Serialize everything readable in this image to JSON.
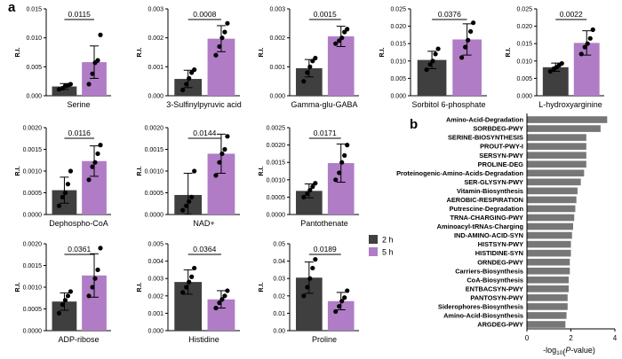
{
  "figure": {
    "panel_a": "a",
    "panel_b": "b",
    "legend": [
      {
        "label": "2 h",
        "color": "#3f3f3f"
      },
      {
        "label": "5 h",
        "color": "#b07cc6"
      }
    ]
  },
  "chart_data": [
    {
      "type": "bar",
      "title": "Serine",
      "ylabel": "R.I.",
      "ylim": [
        0,
        0.015
      ],
      "yticks": [
        "0.000",
        "0.005",
        "0.010",
        "0.015"
      ],
      "categories": [
        "2 h",
        "5 h"
      ],
      "values": [
        0.0016,
        0.0058
      ],
      "errors": [
        0.0005,
        0.0028
      ],
      "points": [
        [
          0.0011,
          0.0013,
          0.0017,
          0.0018,
          0.002
        ],
        [
          0.002,
          0.0038,
          0.0057,
          0.0061,
          0.0105
        ]
      ],
      "pvalue": "0.0115"
    },
    {
      "type": "bar",
      "title": "3-Sulfinylpyruvic acid",
      "ylabel": "R.I.",
      "ylim": [
        0,
        0.003
      ],
      "yticks": [
        "0.000",
        "0.001",
        "0.002",
        "0.003"
      ],
      "categories": [
        "2 h",
        "5 h"
      ],
      "values": [
        0.00058,
        0.00197
      ],
      "errors": [
        0.0003,
        0.00045
      ],
      "points": [
        [
          0.0002,
          0.0004,
          0.0006,
          0.0008,
          0.0009
        ],
        [
          0.0014,
          0.0017,
          0.002,
          0.0022,
          0.0025
        ]
      ],
      "pvalue": "0.0008"
    },
    {
      "type": "bar",
      "title": "Gamma-glu-GABA",
      "ylabel": "R.I.",
      "ylim": [
        0,
        0.003
      ],
      "yticks": [
        "0.000",
        "0.001",
        "0.002",
        "0.003"
      ],
      "categories": [
        "2 h",
        "5 h"
      ],
      "values": [
        0.00095,
        0.00205
      ],
      "errors": [
        0.0003,
        0.00035
      ],
      "points": [
        [
          0.0005,
          0.0008,
          0.001,
          0.0012,
          0.0013
        ],
        [
          0.0018,
          0.0019,
          0.002,
          0.0022,
          0.0023
        ]
      ],
      "pvalue": "0.0015"
    },
    {
      "type": "bar",
      "title": "Sorbitol 6-phosphate",
      "ylabel": "R.I.",
      "ylim": [
        0,
        0.025
      ],
      "yticks": [
        "0.000",
        "0.005",
        "0.010",
        "0.015",
        "0.020",
        "0.025"
      ],
      "categories": [
        "2 h",
        "5 h"
      ],
      "values": [
        0.0103,
        0.0162
      ],
      "errors": [
        0.0025,
        0.0045
      ],
      "points": [
        [
          0.0075,
          0.009,
          0.01,
          0.012,
          0.0135
        ],
        [
          0.011,
          0.014,
          0.016,
          0.0185,
          0.021
        ]
      ],
      "pvalue": "0.0376"
    },
    {
      "type": "bar",
      "title": "L-hydroxyarginine",
      "ylabel": "R.I.",
      "ylim": [
        0,
        0.025
      ],
      "yticks": [
        "0.000",
        "0.005",
        "0.010",
        "0.015",
        "0.020",
        "0.025"
      ],
      "categories": [
        "2 h",
        "5 h"
      ],
      "values": [
        0.0082,
        0.0152
      ],
      "errors": [
        0.0012,
        0.0035
      ],
      "points": [
        [
          0.007,
          0.0078,
          0.0082,
          0.0088,
          0.0093
        ],
        [
          0.012,
          0.014,
          0.015,
          0.0165,
          0.019
        ]
      ],
      "pvalue": "0.0022"
    },
    {
      "type": "bar",
      "title": "Dephospho-CoA",
      "ylabel": "R.I.",
      "ylim": [
        0,
        0.002
      ],
      "yticks": [
        "0.0000",
        "0.0005",
        "0.0010",
        "0.0015",
        "0.0020"
      ],
      "categories": [
        "2 h",
        "5 h"
      ],
      "values": [
        0.00056,
        0.00123
      ],
      "errors": [
        0.0003,
        0.00035
      ],
      "points": [
        [
          0.0002,
          0.0004,
          0.0005,
          0.0007,
          0.001
        ],
        [
          0.0008,
          0.0011,
          0.0012,
          0.0014,
          0.0016
        ]
      ],
      "pvalue": "0.0116"
    },
    {
      "type": "bar",
      "title": "NAD+",
      "ylabel": "R.I.",
      "ylim": [
        0,
        0.002
      ],
      "yticks": [
        "0.0000",
        "0.0005",
        "0.0010",
        "0.0015",
        "0.0020"
      ],
      "categories": [
        "2 h",
        "5 h"
      ],
      "values": [
        0.00045,
        0.0014
      ],
      "errors": [
        0.0005,
        0.00045
      ],
      "points": [
        [
          0.0001,
          0.0002,
          0.0003,
          0.0004,
          0.001
        ],
        [
          0.0009,
          0.0012,
          0.0014,
          0.0015,
          0.0018
        ]
      ],
      "pvalue": "0.0144"
    },
    {
      "type": "bar",
      "title": "Pantothenate",
      "ylabel": "R.I.",
      "ylim": [
        0,
        0.0025
      ],
      "yticks": [
        "0.0000",
        "0.0005",
        "0.0010",
        "0.0015",
        "0.0020",
        "0.0025"
      ],
      "categories": [
        "2 h",
        "5 h"
      ],
      "values": [
        0.00068,
        0.00148
      ],
      "errors": [
        0.0002,
        0.00055
      ],
      "points": [
        [
          0.0005,
          0.0006,
          0.0007,
          0.0008,
          0.0009
        ],
        [
          0.001,
          0.0012,
          0.0015,
          0.0017,
          0.002
        ]
      ],
      "pvalue": "0.0171"
    },
    {
      "type": "bar",
      "title": "ADP-ribose",
      "ylabel": "R.I.",
      "ylim": [
        0,
        0.002
      ],
      "yticks": [
        "0.0000",
        "0.0005",
        "0.0010",
        "0.0015",
        "0.0020"
      ],
      "categories": [
        "2 h",
        "5 h"
      ],
      "values": [
        0.00067,
        0.00127
      ],
      "errors": [
        0.0002,
        0.0005
      ],
      "points": [
        [
          0.0004,
          0.0006,
          0.0007,
          0.0008,
          0.0009
        ],
        [
          0.0008,
          0.001,
          0.0012,
          0.0014,
          0.0019
        ]
      ],
      "pvalue": "0.0361"
    },
    {
      "type": "bar",
      "title": "Histidine",
      "ylabel": "R.I.",
      "ylim": [
        0,
        0.005
      ],
      "yticks": [
        "0.000",
        "0.001",
        "0.002",
        "0.003",
        "0.004",
        "0.005"
      ],
      "categories": [
        "2 h",
        "5 h"
      ],
      "values": [
        0.0028,
        0.0018
      ],
      "errors": [
        0.0007,
        0.0005
      ],
      "points": [
        [
          0.0022,
          0.0025,
          0.0028,
          0.0031,
          0.0036
        ],
        [
          0.0013,
          0.0016,
          0.0018,
          0.002,
          0.0023
        ]
      ],
      "pvalue": "0.0364"
    },
    {
      "type": "bar",
      "title": "Proline",
      "ylabel": "R.I.",
      "ylim": [
        0,
        0.05
      ],
      "yticks": [
        "0.00",
        "0.01",
        "0.02",
        "0.03",
        "0.04",
        "0.05"
      ],
      "categories": [
        "2 h",
        "5 h"
      ],
      "values": [
        0.0305,
        0.017
      ],
      "errors": [
        0.009,
        0.005
      ],
      "points": [
        [
          0.02,
          0.025,
          0.03,
          0.036,
          0.041
        ],
        [
          0.011,
          0.014,
          0.017,
          0.019,
          0.023
        ]
      ],
      "pvalue": "0.0189"
    },
    {
      "type": "bar",
      "orientation": "horizontal",
      "xlabel": "-log10(P-value)",
      "xlim": [
        0,
        4
      ],
      "xticks": [
        "0",
        "2",
        "4"
      ],
      "categories": [
        "Amino-Acid-Degradation",
        "SORBDEG-PWY",
        "SERINE-BIOSYNTHESIS",
        "PROUT-PWY-I",
        "SERSYN-PWY",
        "PROLINE-DEG",
        "Proteinogenic-Amino-Acids-Degradation",
        "SER-GLYSYN-PWY",
        "Vitamin-Biosynthesis",
        "AEROBIC-RESPIRATION",
        "Putrescine-Degradation",
        "TRNA-CHARGING-PWY",
        "Aminoacyl-tRNAs-Charging",
        "IND-AMINO-ACID-SYN",
        "HISTSYN-PWY",
        "HISTIDINE-SYN",
        "ORNDEG-PWY",
        "Carriers-Biosynthesis",
        "CoA-Biosynthesis",
        "ENTBACSYN-PWY",
        "PANTOSYN-PWY",
        "Siderophores-Biosynthesis",
        "Amino-Acid-Biosynthesis",
        "ARGDEG-PWY"
      ],
      "values": [
        3.65,
        3.35,
        2.7,
        2.7,
        2.7,
        2.7,
        2.6,
        2.45,
        2.3,
        2.25,
        2.2,
        2.15,
        2.1,
        2.05,
        2.0,
        2.0,
        1.95,
        1.95,
        1.9,
        1.9,
        1.85,
        1.85,
        1.8,
        1.75
      ]
    }
  ]
}
